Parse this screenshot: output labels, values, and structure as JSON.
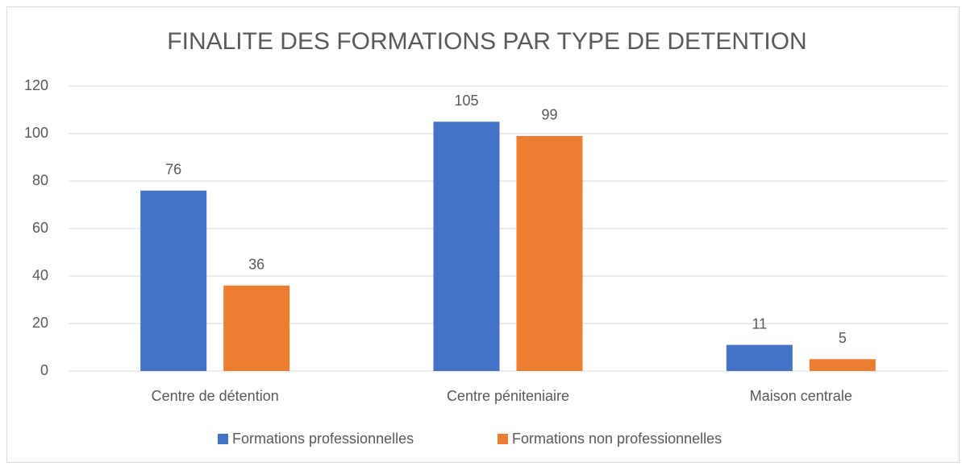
{
  "chart_data": {
    "type": "bar",
    "title": "FINALITE DES FORMATIONS PAR TYPE DE DETENTION",
    "categories": [
      "Centre de détention",
      "Centre péniteniaire",
      "Maison centrale"
    ],
    "series": [
      {
        "name": "Formations professionnelles",
        "color": "#4472c4",
        "values": [
          76,
          105,
          11
        ]
      },
      {
        "name": "Formations non professionnelles",
        "color": "#ed7d31",
        "values": [
          36,
          99,
          5
        ]
      }
    ],
    "ylim": [
      0,
      120
    ],
    "yticks": [
      0,
      20,
      40,
      60,
      80,
      100,
      120
    ],
    "grid": true,
    "legend": "bottom"
  }
}
